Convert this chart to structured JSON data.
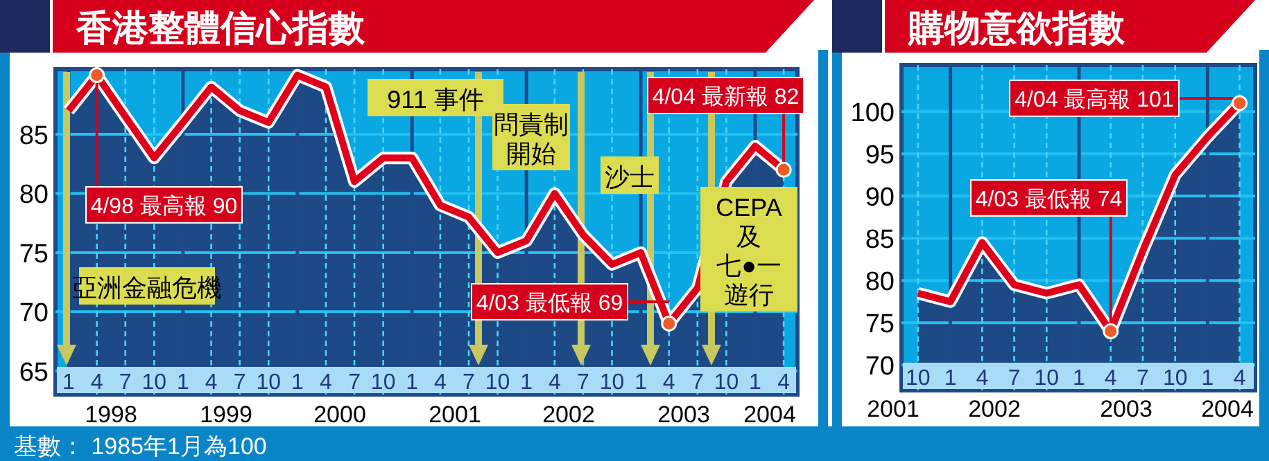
{
  "chart_data": [
    {
      "type": "area",
      "title": "香港整體信心指數",
      "x": [
        "1998-01",
        "1998-04",
        "1998-07",
        "1998-10",
        "1999-01",
        "1999-04",
        "1999-07",
        "1999-10",
        "2000-01",
        "2000-04",
        "2000-07",
        "2000-10",
        "2001-01",
        "2001-04",
        "2001-07",
        "2001-10",
        "2002-01",
        "2002-04",
        "2002-07",
        "2002-10",
        "2003-01",
        "2003-04",
        "2003-07",
        "2003-10",
        "2004-01",
        "2004-04"
      ],
      "series": [
        {
          "color": "#1d4a84",
          "values": [
            87,
            90,
            86.5,
            83,
            86,
            89,
            87,
            86,
            90,
            89,
            81,
            83,
            83,
            79,
            78,
            75,
            76,
            80,
            76.5,
            74,
            75,
            69,
            72,
            81,
            84,
            82
          ]
        },
        {
          "type": "line",
          "color": "#e0001b",
          "values": [
            87,
            90,
            86.5,
            83,
            86,
            89,
            87,
            86,
            90,
            89,
            81,
            83,
            83,
            79,
            78,
            75,
            76,
            80,
            76.5,
            74,
            75,
            69,
            72,
            81,
            84,
            82
          ]
        }
      ],
      "xlim": [
        "1997-11-20",
        "2004-05-15"
      ],
      "ylim": [
        63,
        90.5
      ],
      "yticks": [
        65,
        70,
        75,
        80,
        85
      ],
      "xticks": [
        {
          "value": "1998-01",
          "label": "1"
        },
        {
          "value": "1998-04",
          "label": "4"
        },
        {
          "value": "1998-07",
          "label": "7"
        },
        {
          "value": "1998-10",
          "label": "10"
        },
        {
          "value": "1999-01",
          "label": "1"
        },
        {
          "value": "1999-04",
          "label": "4"
        },
        {
          "value": "1999-07",
          "label": "7"
        },
        {
          "value": "1999-10",
          "label": "10"
        },
        {
          "value": "2000-01",
          "label": "1"
        },
        {
          "value": "2000-04",
          "label": "4"
        },
        {
          "value": "2000-07",
          "label": "7"
        },
        {
          "value": "2000-10",
          "label": "10"
        },
        {
          "value": "2001-01",
          "label": "1"
        },
        {
          "value": "2001-04",
          "label": "4"
        },
        {
          "value": "2001-07",
          "label": "7"
        },
        {
          "value": "2001-10",
          "label": "10"
        },
        {
          "value": "2002-01",
          "label": "1"
        },
        {
          "value": "2002-04",
          "label": "4"
        },
        {
          "value": "2002-07",
          "label": "7"
        },
        {
          "value": "2002-10",
          "label": "10"
        },
        {
          "value": "2003-01",
          "label": "1"
        },
        {
          "value": "2003-04",
          "label": "4"
        },
        {
          "value": "2003-07",
          "label": "7"
        },
        {
          "value": "2003-10",
          "label": "10"
        },
        {
          "value": "2004-01",
          "label": "1"
        },
        {
          "value": "2004-04",
          "label": "4"
        }
      ],
      "grid": true,
      "annotations": [
        "亞洲金融危機",
        "911 事件",
        "問責制開始",
        "沙士",
        "CEPA及七●一遊行",
        "1998",
        "1999",
        "2000",
        "2001",
        "2002",
        "2003",
        "2004",
        {
          "text": "4/98 最高報 90",
          "x": "1998-04",
          "y": 90
        },
        {
          "text": "4/03 最低報 69",
          "x": "2003-04",
          "y": 69
        },
        {
          "text": "4/04 最新報 82",
          "x": "2004-04",
          "y": 82
        },
        "基數： 1985年1月為100"
      ]
    },
    {
      "type": "area",
      "title": "購物意欲指數",
      "x": [
        "2001-10",
        "2002-01",
        "2002-04",
        "2002-07",
        "2002-10",
        "2003-01",
        "2003-04",
        "2003-07",
        "2003-10",
        "2004-01",
        "2004-04"
      ],
      "series": [
        {
          "color": "#1d4a84",
          "values": [
            78.5,
            77.5,
            84.5,
            79.5,
            78.5,
            79.5,
            74,
            83.5,
            92.5,
            97,
            101
          ]
        },
        {
          "type": "line",
          "color": "#e0001b",
          "values": [
            78.5,
            77.5,
            84.5,
            79.5,
            78.5,
            79.5,
            74,
            83.5,
            92.5,
            97,
            101
          ]
        }
      ],
      "xlim": [
        "2001-08-15",
        "2004-05-15"
      ],
      "ylim": [
        67,
        105.5
      ],
      "yticks": [
        70,
        75,
        80,
        85,
        90,
        95,
        100
      ],
      "xticks": [
        {
          "value": "2001-10",
          "label": "10"
        },
        {
          "value": "2002-01",
          "label": "1"
        },
        {
          "value": "2002-04",
          "label": "4"
        },
        {
          "value": "2002-07",
          "label": "7"
        },
        {
          "value": "2002-10",
          "label": "10"
        },
        {
          "value": "2003-01",
          "label": "1"
        },
        {
          "value": "2003-04",
          "label": "4"
        },
        {
          "value": "2003-07",
          "label": "7"
        },
        {
          "value": "2003-10",
          "label": "10"
        },
        {
          "value": "2004-01",
          "label": "1"
        },
        {
          "value": "2004-04",
          "label": "4"
        }
      ],
      "grid": true,
      "annotations": [
        "2001",
        "2002",
        "2003",
        "2004",
        {
          "text": "4/03 最低報 74",
          "x": "2003-04",
          "y": 74
        },
        {
          "text": "4/04 最高報 101",
          "x": "2004-04",
          "y": 101
        }
      ]
    }
  ]
}
